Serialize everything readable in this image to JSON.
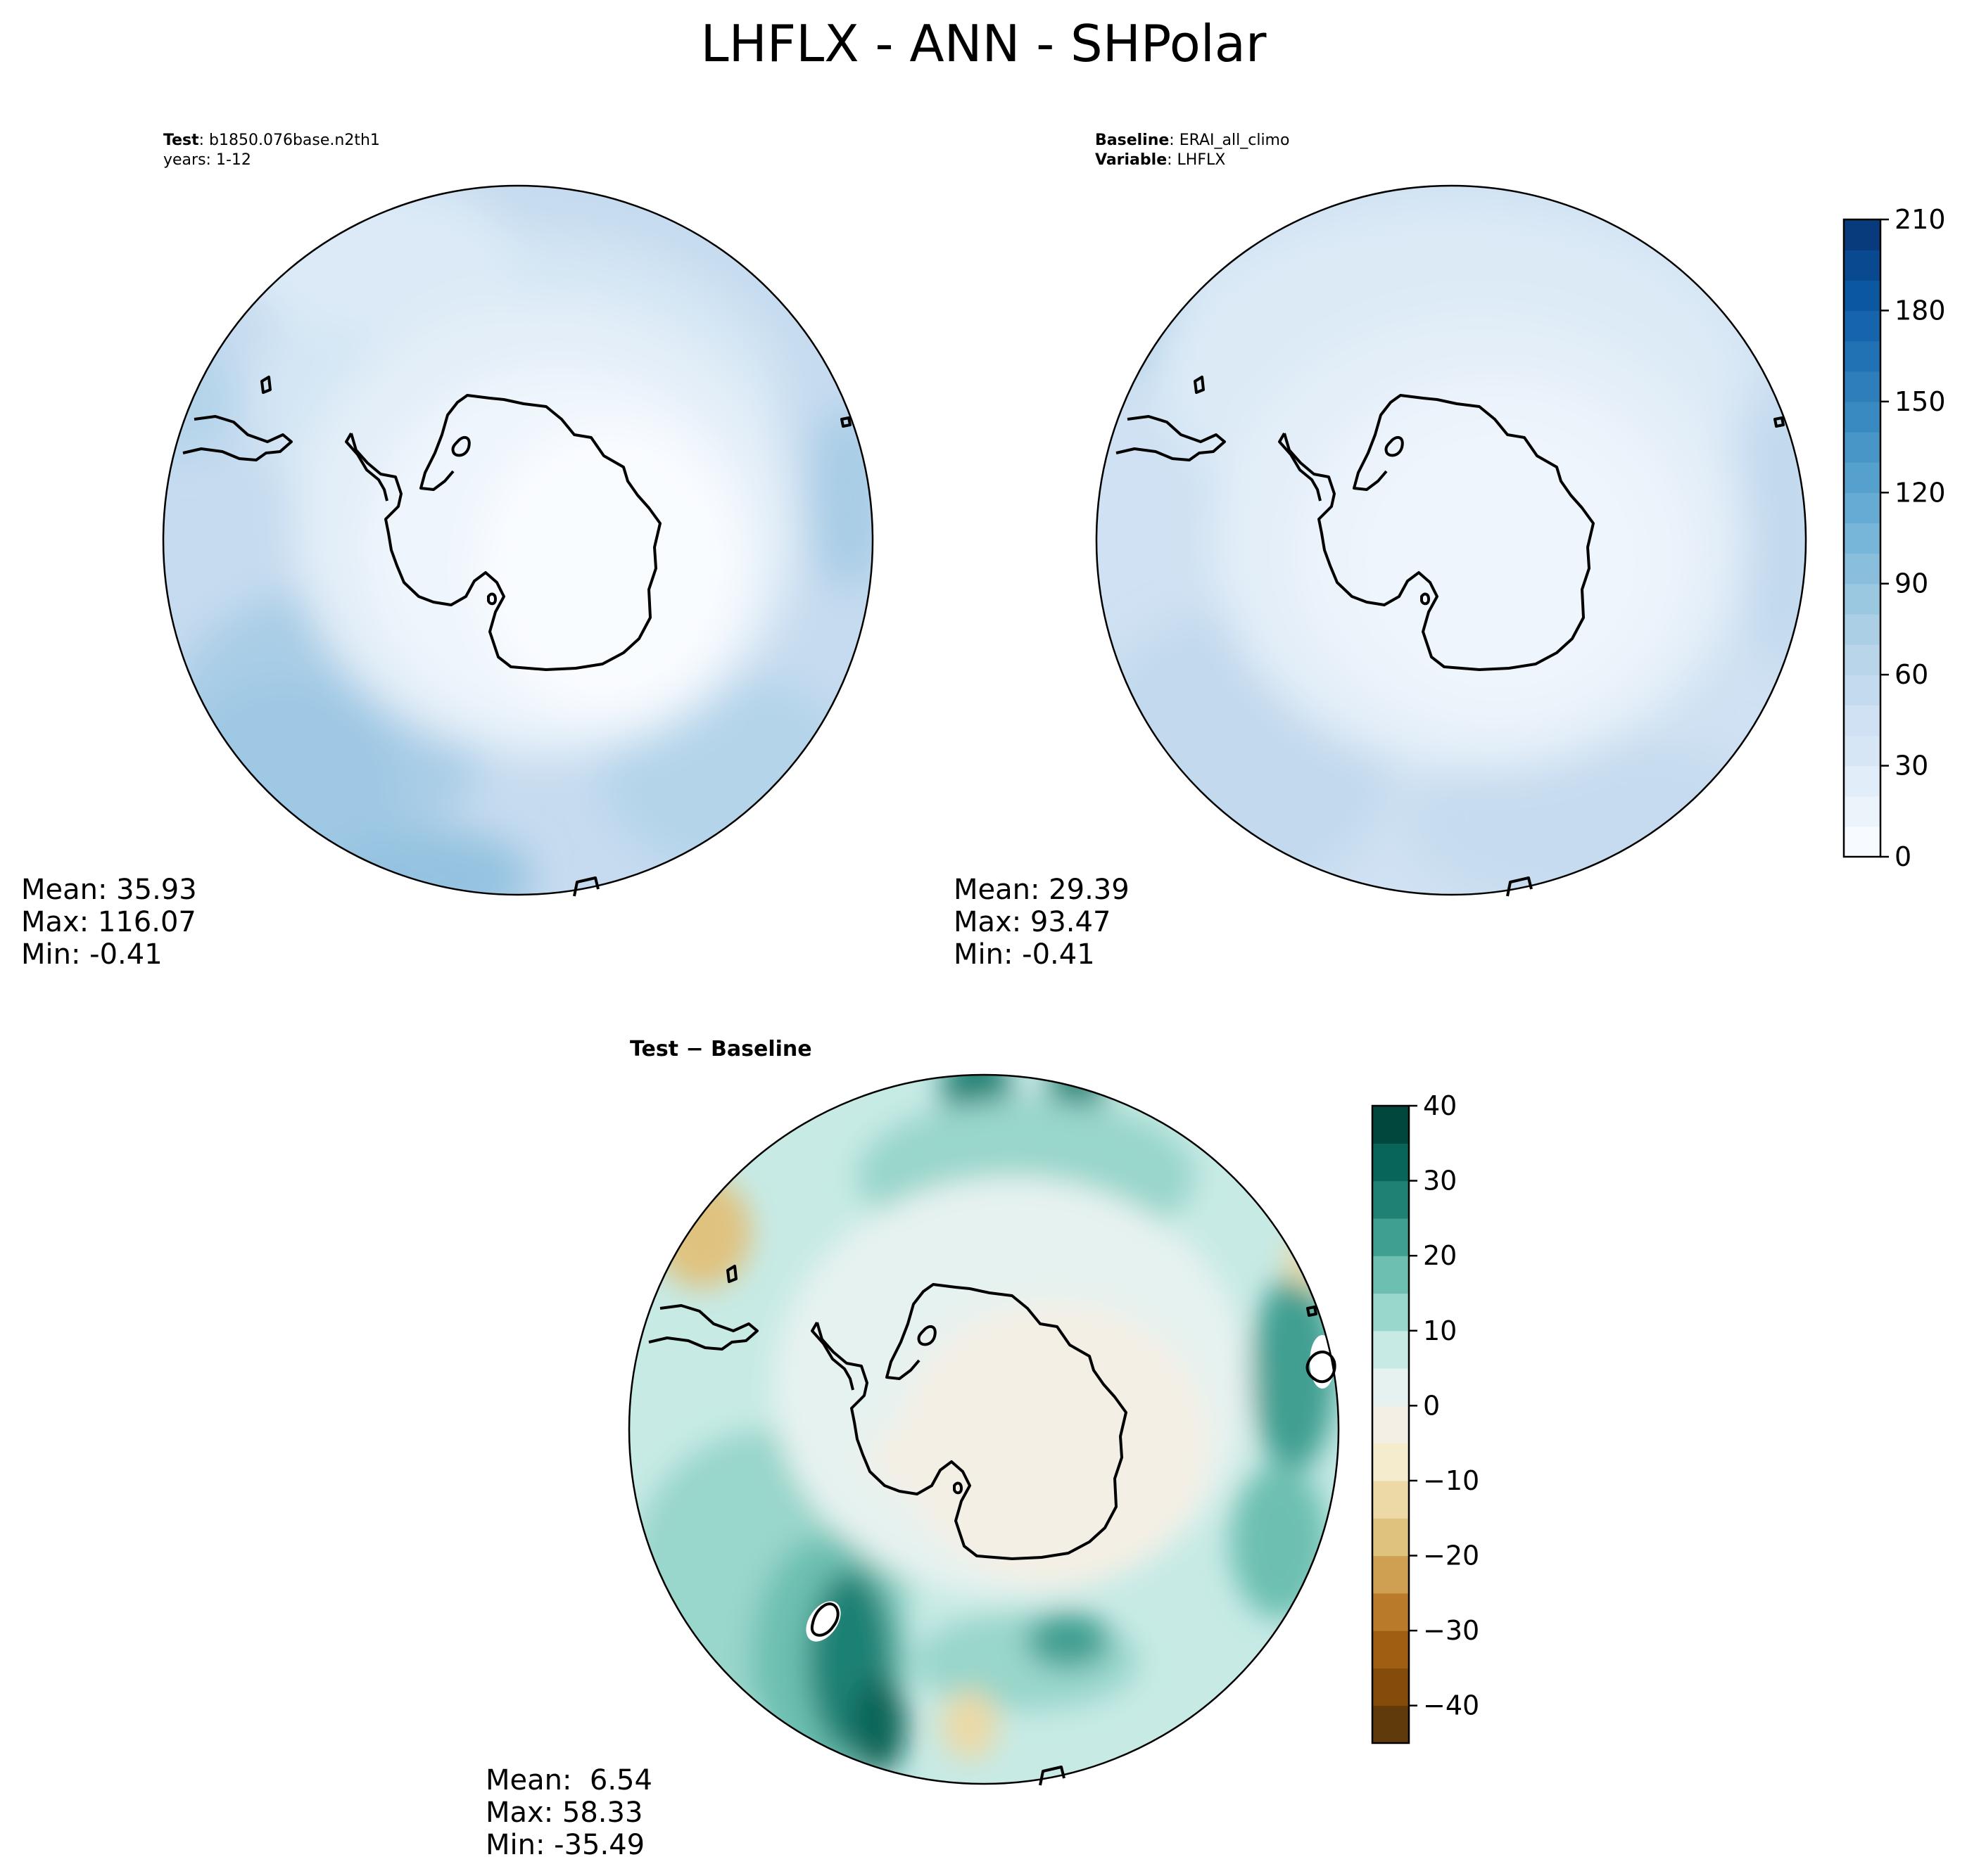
{
  "title": "LHFLX - ANN - SHPolar",
  "panels": {
    "test": {
      "label_bold": "Test",
      "label_text": ": b1850.076base.n2th1",
      "years": "years: 1-12",
      "stats": {
        "mean": "Mean: 35.93",
        "max": "Max: 116.07",
        "min": "Min: -0.41"
      }
    },
    "baseline": {
      "label_bold": "Baseline",
      "label_text": ": ERAI_all_climo",
      "variable_bold": "Variable",
      "variable_text": ": LHFLX",
      "stats": {
        "mean": "Mean: 29.39",
        "max": "Max: 93.47",
        "min": "Min: -0.41"
      }
    },
    "diff": {
      "title": "Test − Baseline",
      "stats": {
        "mean": "Mean:  6.54",
        "max": "Max: 58.33",
        "min": "Min: -35.49"
      }
    }
  },
  "colorbars": {
    "main": {
      "levels": [
        0,
        10,
        20,
        30,
        40,
        50,
        60,
        70,
        80,
        90,
        100,
        110,
        120,
        130,
        140,
        150,
        160,
        170,
        180,
        190,
        200,
        210
      ],
      "ticks": [
        "0",
        "30",
        "60",
        "90",
        "120",
        "150",
        "180",
        "210"
      ],
      "tick_values": [
        0,
        30,
        60,
        90,
        120,
        150,
        180,
        210
      ],
      "colors": [
        "#f7fbff",
        "#ebf3fb",
        "#e1edf8",
        "#d7e6f5",
        "#cfe1f2",
        "#c4dbef",
        "#b9d5ea",
        "#abcfe5",
        "#9ac8e1",
        "#89bedc",
        "#77b5d9",
        "#66abd4",
        "#56a0ce",
        "#4896c8",
        "#3a8ac2",
        "#2e7ebc",
        "#2171b5",
        "#1664ab",
        "#0b58a0",
        "#084990",
        "#083b7c"
      ]
    },
    "diff": {
      "levels": [
        -45,
        -40,
        -35,
        -30,
        -25,
        -20,
        -15,
        -10,
        -5,
        0,
        5,
        10,
        15,
        20,
        25,
        30,
        35,
        40
      ],
      "ticks": [
        "−40",
        "−30",
        "−20",
        "−10",
        "0",
        "10",
        "20",
        "30",
        "40"
      ],
      "tick_values": [
        -40,
        -30,
        -20,
        -10,
        0,
        10,
        20,
        30,
        40
      ],
      "colors": [
        "#613a0c",
        "#844b0a",
        "#a05e13",
        "#b97a2a",
        "#cfa051",
        "#e0c27f",
        "#ecd9a6",
        "#f5ebcd",
        "#f4efe4",
        "#e6f2f0",
        "#c7eae5",
        "#99d6cb",
        "#6dc0b1",
        "#3f9f91",
        "#1e8174",
        "#076559",
        "#02473d"
      ]
    }
  },
  "chart_data": [
    {
      "type": "heatmap",
      "title": "Test : b1850.076base.n2th1",
      "subtitle": "years: 1-12",
      "projection": "south polar stereographic",
      "colorbar_range": [
        0,
        210
      ],
      "stats": {
        "mean": 35.93,
        "max": 116.07,
        "min": -0.41
      }
    },
    {
      "type": "heatmap",
      "title": "Baseline : ERAI_all_climo",
      "subtitle": "Variable : LHFLX",
      "projection": "south polar stereographic",
      "colorbar_range": [
        0,
        210
      ],
      "stats": {
        "mean": 29.39,
        "max": 93.47,
        "min": -0.41
      }
    },
    {
      "type": "heatmap",
      "title": "Test − Baseline",
      "projection": "south polar stereographic",
      "colorbar_range": [
        -45,
        40
      ],
      "stats": {
        "mean": 6.54,
        "max": 58.33,
        "min": -35.49
      }
    }
  ]
}
